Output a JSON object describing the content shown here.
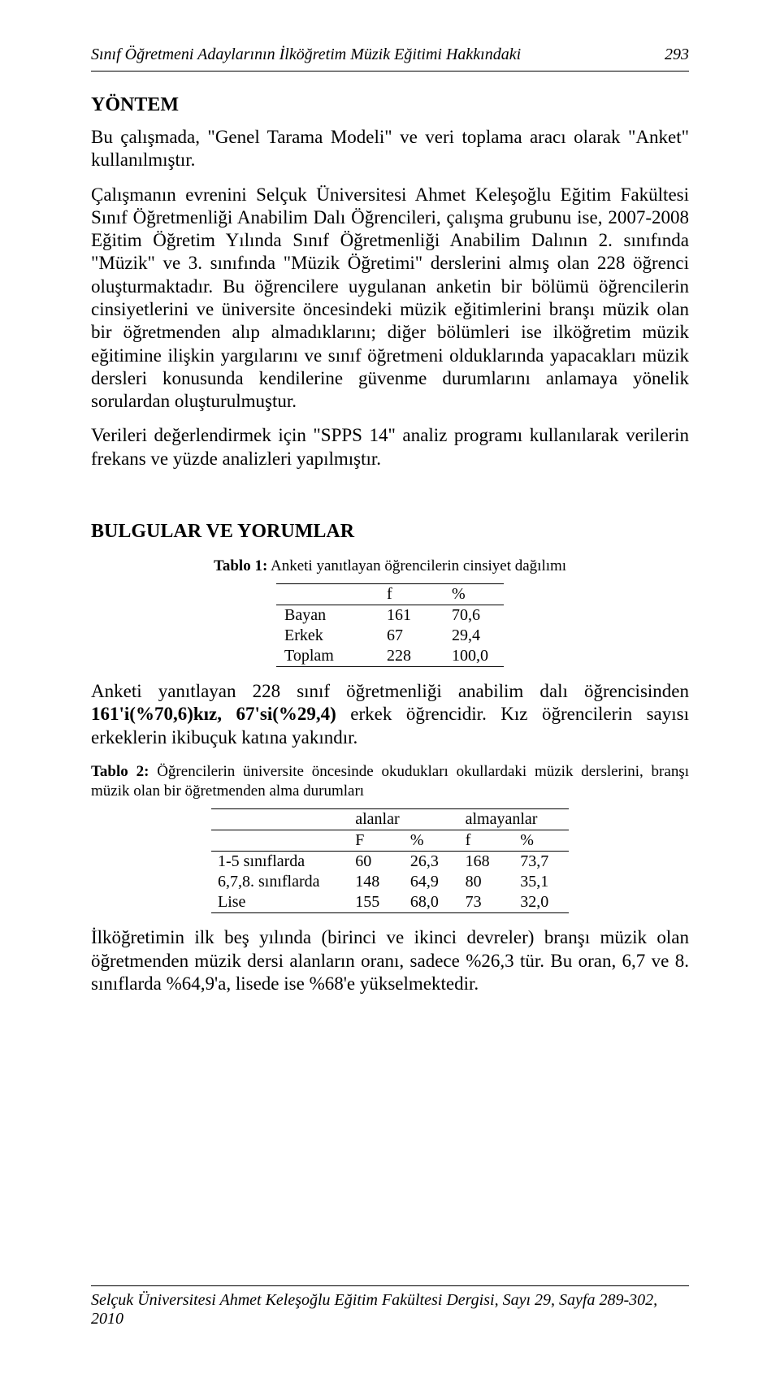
{
  "header": {
    "running_title": "Sınıf Öğretmeni Adaylarının İlköğretim Müzik Eğitimi Hakkındaki",
    "page_number": "293"
  },
  "sections": {
    "yontem": {
      "title": "YÖNTEM",
      "p1": "Bu çalışmada, \"Genel Tarama Modeli\" ve veri toplama aracı olarak \"Anket\" kullanılmıştır.",
      "p2": "Çalışmanın evrenini Selçuk Üniversitesi Ahmet Keleşoğlu Eğitim Fakültesi Sınıf Öğretmenliği Anabilim Dalı Öğrencileri, çalışma grubunu ise, 2007-2008 Eğitim Öğretim Yılında Sınıf Öğretmenliği Anabilim Dalının 2. sınıfında \"Müzik\" ve 3. sınıfında \"Müzik Öğretimi\" derslerini almış olan 228 öğrenci oluşturmaktadır. Bu öğrencilere uygulanan anketin bir bölümü öğrencilerin cinsiyetlerini ve üniversite öncesindeki müzik eğitimlerini branşı müzik olan bir öğretmenden alıp almadıklarını; diğer bölümleri ise ilköğretim müzik eğitimine ilişkin yargılarını ve sınıf öğretmeni olduklarında yapacakları müzik dersleri konusunda kendilerine güvenme durumlarını anlamaya yönelik sorulardan oluşturulmuştur.",
      "p3": "Verileri değerlendirmek için \"SPPS 14\" analiz programı kullanılarak verilerin frekans ve yüzde analizleri yapılmıştır."
    },
    "bulgular": {
      "title": "BULGULAR VE YORUMLAR"
    }
  },
  "table1": {
    "type": "table",
    "caption_bold": "Tablo 1:",
    "caption_rest": " Anketi yanıtlayan öğrencilerin cinsiyet dağılımı",
    "columns": [
      "",
      "f",
      "%"
    ],
    "rows": [
      [
        "Bayan",
        "161",
        "70,6"
      ],
      [
        "Erkek",
        "67",
        "29,4"
      ],
      [
        "Toplam",
        "228",
        "100,0"
      ]
    ],
    "col_align": [
      "left",
      "left",
      "left"
    ],
    "border_color": "#000000",
    "fontsize": 20
  },
  "after_table1": {
    "text_pre_bold1": "Anketi yanıtlayan 228 sınıf öğretmenliği anabilim dalı öğrencisinden ",
    "bold1": "161'i(%70,6)kız, 67'si(%29,4)",
    "text_post_bold1": " erkek öğrencidir. Kız öğrencilerin sayısı erkeklerin ikibuçuk katına yakındır."
  },
  "table2": {
    "type": "table",
    "caption_bold": "Tablo 2:",
    "caption_rest": " Öğrencilerin üniversite öncesinde okudukları okullardaki müzik derslerini, branşı müzik olan bir öğretmenden alma durumları",
    "super_headers": [
      "",
      "alanlar",
      "almayanlar"
    ],
    "columns": [
      "",
      "F",
      "%",
      "f",
      "%"
    ],
    "rows": [
      [
        "1-5 sınıflarda",
        "60",
        "26,3",
        "168",
        "73,7"
      ],
      [
        "6,7,8. sınıflarda",
        "148",
        "64,9",
        "80",
        "35,1"
      ],
      [
        "Lise",
        "155",
        "68,0",
        "73",
        "32,0"
      ]
    ],
    "border_color": "#000000",
    "fontsize": 20
  },
  "after_table2": {
    "text": "İlköğretimin ilk beş yılında (birinci ve ikinci devreler) branşı müzik olan öğretmenden müzik dersi alanların oranı, sadece %26,3 tür. Bu oran, 6,7 ve 8. sınıflarda %64,9'a, lisede ise %68'e yükselmektedir."
  },
  "footer": {
    "text": "Selçuk Üniversitesi Ahmet Keleşoğlu Eğitim Fakültesi Dergisi, Sayı 29, Sayfa 289-302, 2010"
  }
}
